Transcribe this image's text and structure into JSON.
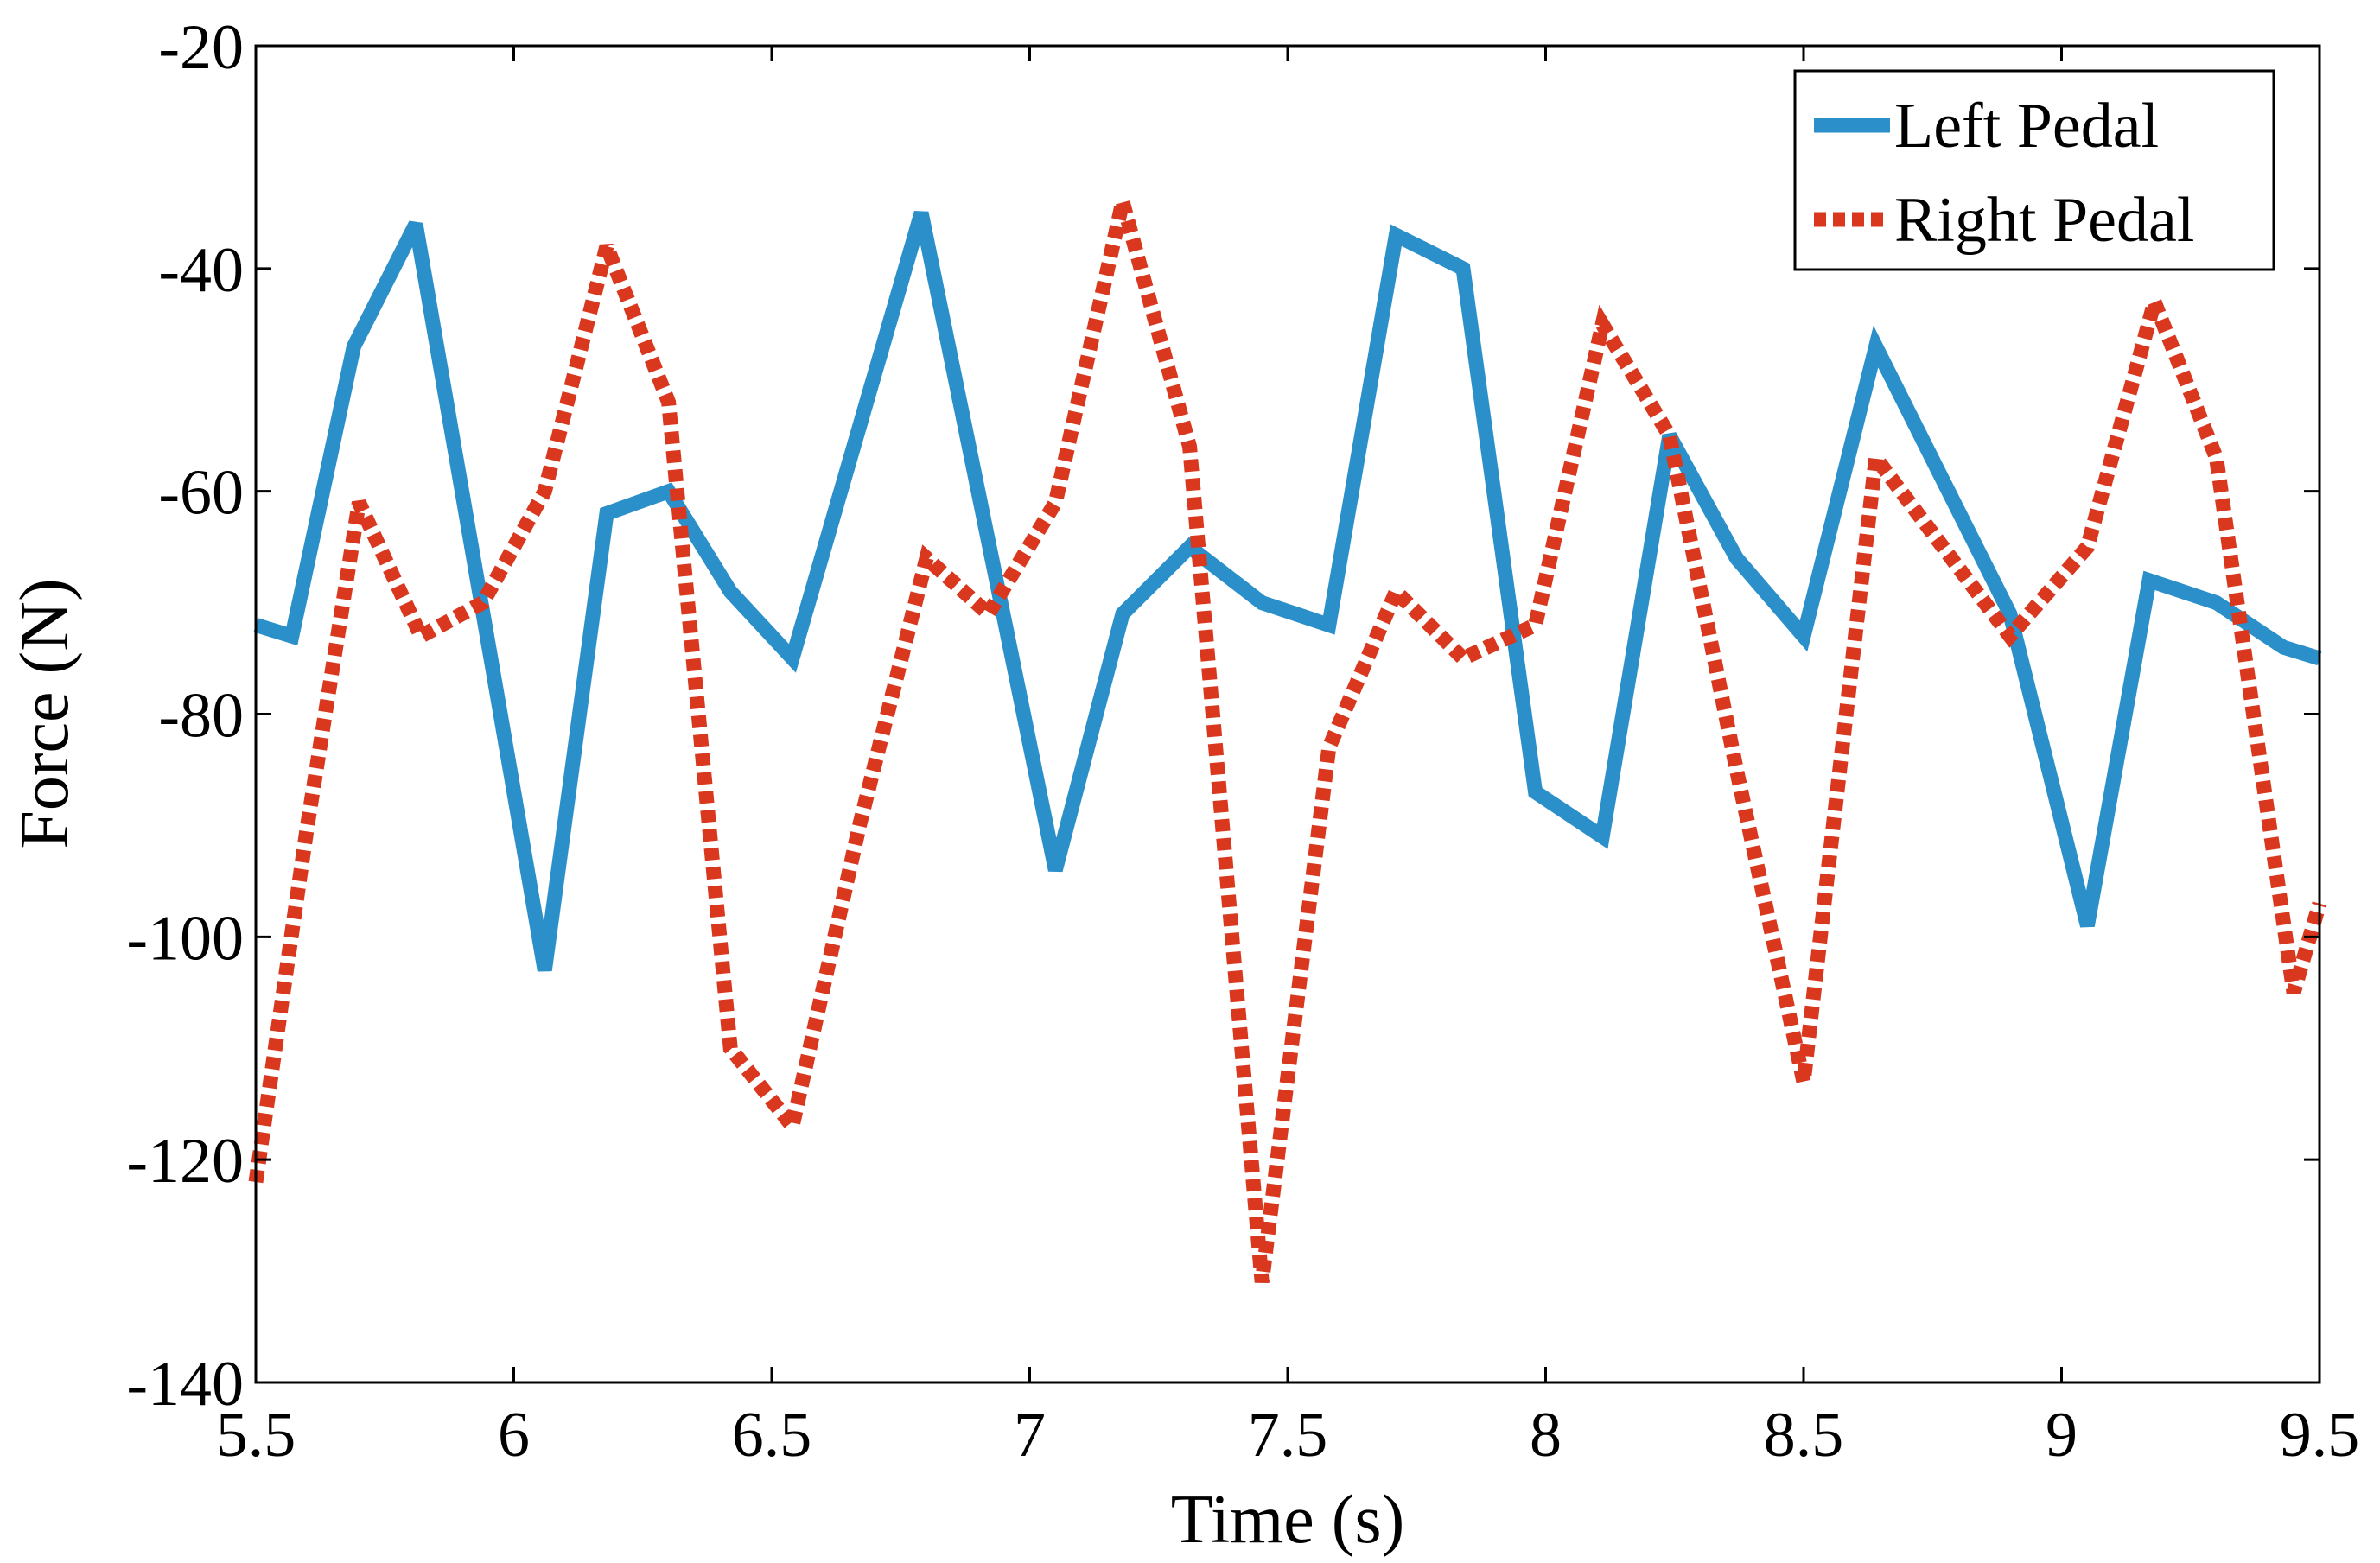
{
  "chart_data": {
    "type": "line",
    "title": "",
    "xlabel": "Time (s)",
    "ylabel": "Force (N)",
    "xlim": [
      5.5,
      9.5
    ],
    "ylim": [
      -140,
      -20
    ],
    "xticks": [
      5.5,
      6,
      6.5,
      7,
      7.5,
      8,
      8.5,
      9,
      9.5
    ],
    "xtick_labels": [
      "5.5",
      "6",
      "6.5",
      "7",
      "7.5",
      "8",
      "8.5",
      "9",
      "9.5"
    ],
    "yticks": [
      -140,
      -120,
      -100,
      -80,
      -60,
      -40,
      -20
    ],
    "ytick_labels": [
      "-140",
      "-120",
      "-100",
      "-80",
      "-60",
      "-40",
      "-20"
    ],
    "grid": false,
    "legend_position": "top-right",
    "series": [
      {
        "name": "Left Pedal",
        "color": "#2b8fc9",
        "style": "solid",
        "x": [
          5.5,
          5.57,
          5.69,
          5.81,
          6.06,
          6.18,
          6.3,
          6.42,
          6.54,
          6.79,
          7.05,
          7.18,
          7.31,
          7.45,
          7.58,
          7.71,
          7.84,
          7.98,
          8.11,
          8.24,
          8.37,
          8.5,
          8.64,
          8.77,
          8.9,
          9.05,
          9.17,
          9.3,
          9.43,
          9.5
        ],
        "y": [
          -72,
          -73,
          -47,
          -36,
          -103,
          -62,
          -60,
          -69,
          -75,
          -35,
          -94,
          -71,
          -65,
          -70,
          -72,
          -37,
          -40,
          -87,
          -91,
          -55,
          -66,
          -73,
          -47,
          -59,
          -71,
          -99,
          -68,
          -70,
          -74,
          -75
        ]
      },
      {
        "name": "Right Pedal",
        "color": "#d9381e",
        "style": "dashed",
        "x": [
          5.5,
          5.6,
          5.7,
          5.82,
          5.94,
          6.06,
          6.18,
          6.3,
          6.42,
          6.54,
          6.67,
          6.8,
          6.92,
          7.05,
          7.18,
          7.31,
          7.45,
          7.58,
          7.71,
          7.84,
          7.98,
          8.11,
          8.24,
          8.37,
          8.5,
          8.64,
          8.77,
          8.9,
          9.05,
          9.18,
          9.3,
          9.45,
          9.5
        ],
        "y": [
          -122,
          -90,
          -61,
          -73,
          -70,
          -60,
          -38,
          -52,
          -110,
          -117,
          -90,
          -66,
          -71,
          -61,
          -34,
          -56,
          -131,
          -83,
          -69,
          -75,
          -72,
          -45,
          -55,
          -85,
          -113,
          -57,
          -65,
          -73,
          -65,
          -43,
          -57,
          -105,
          -97
        ]
      }
    ]
  }
}
